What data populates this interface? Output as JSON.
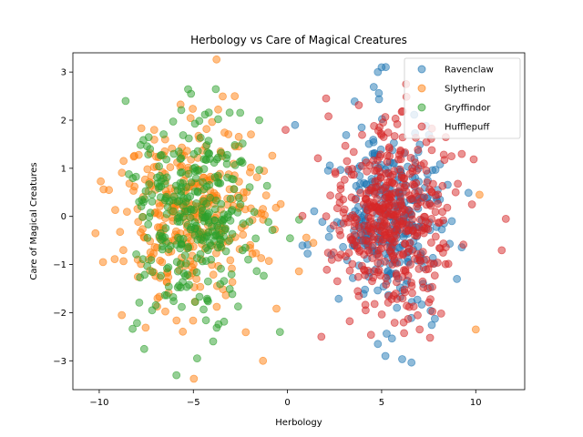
{
  "chart_data": {
    "type": "scatter",
    "title": "Herbology vs Care of Magical Creatures",
    "xlabel": "Herbology",
    "ylabel": "Care of Magical Creatures",
    "xlim": [
      -11.4,
      12.6
    ],
    "ylim": [
      -3.6,
      3.4
    ],
    "xticks": [
      -10,
      -5,
      0,
      5,
      10
    ],
    "yticks": [
      -3,
      -2,
      -1,
      0,
      1,
      2,
      3
    ],
    "grid": false,
    "legend_position": "top-right",
    "series": [
      {
        "name": "Ravenclaw",
        "color": "#1f77b4",
        "center": [
          5.2,
          0.0
        ],
        "spread": [
          1.6,
          1.0
        ],
        "count": 320,
        "extremes": [
          [
            4.8,
            3.0
          ],
          [
            5.0,
            3.1
          ],
          [
            0.4,
            1.9
          ],
          [
            9.0,
            -1.3
          ],
          [
            5.2,
            -2.9
          ],
          [
            4.8,
            -2.65
          ]
        ]
      },
      {
        "name": "Slytherin",
        "color": "#ff7f0e",
        "center": [
          -5.0,
          0.0
        ],
        "spread": [
          1.9,
          1.0
        ],
        "count": 330,
        "extremes": [
          [
            -10.2,
            -0.35
          ],
          [
            -9.8,
            -0.95
          ],
          [
            -2.8,
            2.5
          ],
          [
            10.2,
            0.45
          ],
          [
            10.0,
            -2.35
          ],
          [
            -1.3,
            -3.0
          ],
          [
            -8.8,
            -2.05
          ]
        ]
      },
      {
        "name": "Gryffindor",
        "color": "#2ca02c",
        "center": [
          -4.9,
          0.0
        ],
        "spread": [
          1.55,
          1.0
        ],
        "count": 320,
        "extremes": [
          [
            -5.9,
            -3.3
          ],
          [
            -8.6,
            2.4
          ],
          [
            -4.8,
            -2.95
          ],
          [
            -0.4,
            -2.4
          ],
          [
            -1.5,
            2.0
          ]
        ]
      },
      {
        "name": "Hufflepuff",
        "color": "#d62728",
        "center": [
          5.5,
          0.0
        ],
        "spread": [
          1.55,
          0.95
        ],
        "count": 450,
        "extremes": [
          [
            11.6,
            -0.05
          ],
          [
            -0.1,
            1.8
          ],
          [
            1.8,
            -2.5
          ],
          [
            6.3,
            2.75
          ],
          [
            9.8,
            0.25
          ]
        ]
      }
    ]
  }
}
